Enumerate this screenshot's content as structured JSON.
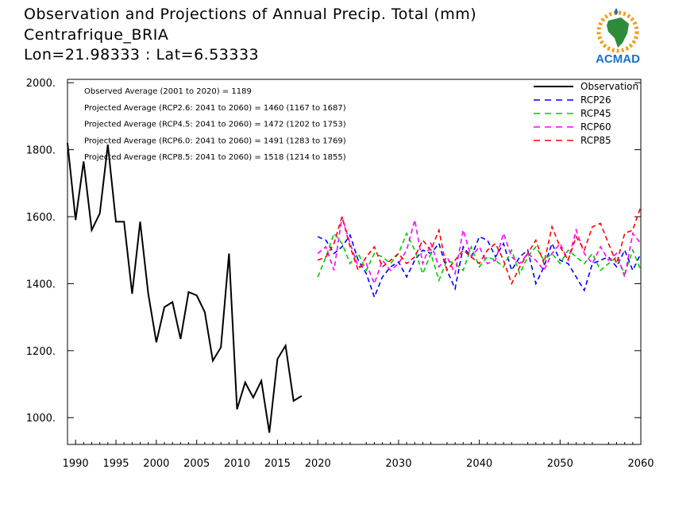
{
  "title": {
    "line1": "Observation and Projections of Annual Precip. Total (mm)",
    "line2": "Centrafrique_BRIA",
    "line3": "Lon=21.98333 : Lat=6.53333"
  },
  "logo": {
    "text": "ACMAD",
    "icon": "africa-map-logo"
  },
  "colors": {
    "observation": "#000000",
    "RCP26": "#0000ff",
    "RCP45": "#00cc00",
    "RCP60": "#ff00ff",
    "RCP85": "#ff0000"
  },
  "chart_data": {
    "type": "line",
    "xlim": [
      1989,
      2060
    ],
    "ylim": [
      920,
      2010
    ],
    "grid": false,
    "legend_position": "top-right",
    "x_ticks": [
      {
        "value": 1990,
        "label": "1990"
      },
      {
        "value": 1995,
        "label": "1995"
      },
      {
        "value": 2000,
        "label": "2000"
      },
      {
        "value": 2005,
        "label": "2005"
      },
      {
        "value": 2010,
        "label": "2010"
      },
      {
        "value": 2015,
        "label": "2015"
      },
      {
        "value": 2020,
        "label": "2020"
      },
      {
        "value": 2030,
        "label": "2030"
      },
      {
        "value": 2040,
        "label": "2040"
      },
      {
        "value": 2050,
        "label": "2050"
      },
      {
        "value": 2060,
        "label": "2060"
      }
    ],
    "y_ticks": [
      {
        "value": 1000,
        "label": "1000."
      },
      {
        "value": 1200,
        "label": "1200."
      },
      {
        "value": 1400,
        "label": "1400."
      },
      {
        "value": 1600,
        "label": "1600."
      },
      {
        "value": 1800,
        "label": "1800."
      },
      {
        "value": 2000,
        "label": "2000."
      }
    ],
    "annotations": [
      "Observed Average (2001 to 2020) = 1189",
      "Projected Average (RCP2.6: 2041 to 2060) = 1460 (1167 to 1687)",
      "Projected Average (RCP4.5: 2041 to 2060) = 1472 (1202 to 1753)",
      "Projected Average (RCP6.0: 2041 to 2060) = 1491 (1283 to 1769)",
      "Projected Average (RCP8.5: 2041 to 2060) = 1518 (1214 to 1855)"
    ],
    "series": [
      {
        "name": "Observation",
        "color": "#000000",
        "style": "solid",
        "x_start": 1989,
        "values": [
          1820,
          1590,
          1765,
          1560,
          1610,
          1815,
          1585,
          1585,
          1370,
          1585,
          1370,
          1225,
          1330,
          1345,
          1235,
          1375,
          1365,
          1315,
          1170,
          1210,
          1490,
          1025,
          1105,
          1060,
          1110,
          955,
          1175,
          1215,
          1050,
          1065
        ]
      },
      {
        "name": "RCP26",
        "color": "#0000ff",
        "style": "dashed",
        "x_start": 2020,
        "values": [
          1540,
          1530,
          1490,
          1510,
          1545,
          1470,
          1430,
          1360,
          1420,
          1450,
          1465,
          1420,
          1470,
          1500,
          1490,
          1520,
          1440,
          1385,
          1510,
          1480,
          1540,
          1530,
          1480,
          1520,
          1440,
          1480,
          1500,
          1400,
          1450,
          1520,
          1470,
          1460,
          1420,
          1380,
          1460,
          1470,
          1480,
          1450,
          1500,
          1440,
          1490
        ]
      },
      {
        "name": "RCP45",
        "color": "#00cc00",
        "style": "dashed",
        "x_start": 2020,
        "values": [
          1420,
          1480,
          1550,
          1520,
          1460,
          1490,
          1440,
          1490,
          1480,
          1460,
          1490,
          1550,
          1500,
          1430,
          1490,
          1410,
          1470,
          1460,
          1440,
          1510,
          1450,
          1480,
          1470,
          1450,
          1500,
          1430,
          1480,
          1510,
          1470,
          1490,
          1460,
          1500,
          1480,
          1460,
          1490,
          1440,
          1460,
          1480,
          1430,
          1500,
          1440
        ]
      },
      {
        "name": "RCP60",
        "color": "#ff00ff",
        "style": "dashed",
        "x_start": 2020,
        "values": [
          1490,
          1510,
          1440,
          1600,
          1520,
          1450,
          1460,
          1400,
          1470,
          1440,
          1460,
          1500,
          1590,
          1460,
          1520,
          1450,
          1480,
          1430,
          1560,
          1480,
          1510,
          1460,
          1470,
          1550,
          1480,
          1460,
          1490,
          1470,
          1440,
          1490,
          1520,
          1470,
          1560,
          1490,
          1460,
          1510,
          1470,
          1490,
          1420,
          1550,
          1520
        ]
      },
      {
        "name": "RCP85",
        "color": "#ff0000",
        "style": "dashed",
        "x_start": 2020,
        "values": [
          1470,
          1480,
          1520,
          1600,
          1510,
          1440,
          1480,
          1510,
          1450,
          1470,
          1490,
          1460,
          1480,
          1530,
          1500,
          1560,
          1440,
          1470,
          1500,
          1480,
          1460,
          1500,
          1520,
          1470,
          1400,
          1450,
          1490,
          1530,
          1460,
          1570,
          1510,
          1470,
          1540,
          1500,
          1570,
          1580,
          1520,
          1460,
          1550,
          1560,
          1630
        ]
      }
    ]
  }
}
